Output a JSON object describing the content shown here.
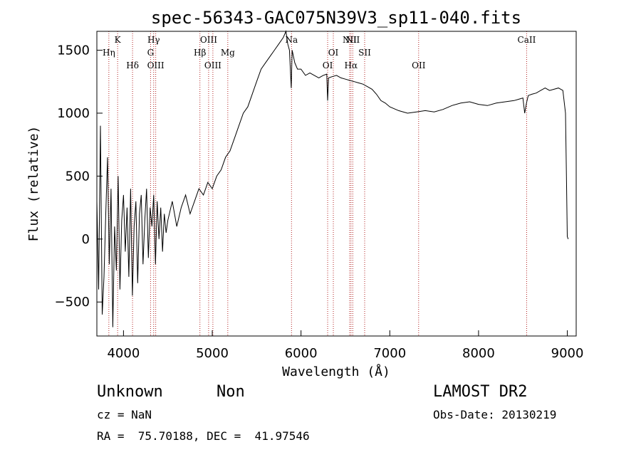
{
  "chart_data": {
    "type": "line",
    "title": "spec-56343-GAC075N39V3_sp11-040.fits",
    "xlabel": "Wavelength (Å)",
    "ylabel": "Flux (relative)",
    "xlim": [
      3700,
      9100
    ],
    "ylim": [
      -770,
      1650
    ],
    "xticks": [
      4000,
      5000,
      6000,
      7000,
      8000,
      9000
    ],
    "yticks": [
      -500,
      0,
      500,
      1000,
      1500
    ],
    "xtick_labels": [
      "4000",
      "5000",
      "6000",
      "7000",
      "8000",
      "9000"
    ],
    "ytick_labels": [
      "−500",
      "0",
      "500",
      "1000",
      "1500"
    ],
    "series": [
      {
        "x": [
          3700,
          3720,
          3740,
          3760,
          3780,
          3800,
          3820,
          3840,
          3860,
          3880,
          3900,
          3920,
          3940,
          3960,
          3980,
          4000,
          4020,
          4040,
          4060,
          4080,
          4100,
          4120,
          4140,
          4160,
          4180,
          4200,
          4220,
          4240,
          4260,
          4280,
          4300,
          4320,
          4340,
          4360,
          4380,
          4400,
          4420,
          4440,
          4460,
          4480,
          4500,
          4550,
          4600,
          4650,
          4700,
          4750,
          4800,
          4850,
          4900,
          4950,
          5000,
          5050,
          5100,
          5150,
          5200,
          5250,
          5300,
          5350,
          5400,
          5450,
          5500,
          5550,
          5600,
          5650,
          5700,
          5750,
          5800,
          5830,
          5850,
          5870,
          5890,
          5900,
          5930,
          5960,
          6000,
          6050,
          6100,
          6150,
          6200,
          6250,
          6290,
          6300,
          6310,
          6350,
          6400,
          6450,
          6500,
          6550,
          6600,
          6650,
          6700,
          6750,
          6800,
          6850,
          6900,
          6950,
          7000,
          7100,
          7200,
          7300,
          7400,
          7500,
          7600,
          7700,
          7800,
          7900,
          8000,
          8100,
          8200,
          8300,
          8400,
          8450,
          8500,
          8520,
          8540,
          8560,
          8600,
          8650,
          8700,
          8750,
          8800,
          8850,
          8900,
          8950,
          8980,
          8990,
          9000,
          9010
        ],
        "y": [
          300,
          -400,
          900,
          -600,
          -300,
          200,
          650,
          -200,
          400,
          -700,
          100,
          -250,
          500,
          -400,
          150,
          350,
          -100,
          250,
          -300,
          400,
          -450,
          100,
          300,
          -350,
          200,
          350,
          -200,
          150,
          400,
          -150,
          250,
          100,
          350,
          -200,
          300,
          0,
          250,
          -100,
          200,
          50,
          150,
          300,
          100,
          250,
          350,
          200,
          300,
          400,
          350,
          450,
          400,
          500,
          550,
          650,
          700,
          800,
          900,
          1000,
          1050,
          1150,
          1250,
          1350,
          1400,
          1450,
          1500,
          1550,
          1600,
          1650,
          1550,
          1500,
          1200,
          1500,
          1400,
          1350,
          1350,
          1300,
          1320,
          1300,
          1280,
          1300,
          1310,
          1100,
          1280,
          1290,
          1300,
          1280,
          1270,
          1260,
          1250,
          1240,
          1230,
          1210,
          1190,
          1150,
          1100,
          1080,
          1050,
          1020,
          1000,
          1010,
          1020,
          1010,
          1030,
          1060,
          1080,
          1090,
          1070,
          1060,
          1080,
          1090,
          1100,
          1110,
          1120,
          1000,
          1080,
          1140,
          1150,
          1160,
          1180,
          1200,
          1180,
          1190,
          1200,
          1180,
          1000,
          500,
          20,
          0
        ]
      }
    ],
    "lines": [
      {
        "label": "Hη",
        "x": 3835,
        "row": 1
      },
      {
        "label": "K",
        "x": 3934,
        "row": 0
      },
      {
        "label": "Hδ",
        "x": 4102,
        "row": 2
      },
      {
        "label": "Hγ",
        "x": 4340,
        "row": 0
      },
      {
        "label": "G",
        "x": 4305,
        "row": 1
      },
      {
        "label": "OIII",
        "x": 4363,
        "row": 2
      },
      {
        "label": "OIII",
        "x": 4959,
        "row": 0
      },
      {
        "label": "Hβ",
        "x": 4861,
        "row": 1
      },
      {
        "label": "OIII",
        "x": 5007,
        "row": 2
      },
      {
        "label": "Mg",
        "x": 5175,
        "row": 1
      },
      {
        "label": "Na",
        "x": 5893,
        "row": 0
      },
      {
        "label": "OI",
        "x": 6364,
        "row": 1
      },
      {
        "label": "OI",
        "x": 6300,
        "row": 2
      },
      {
        "label": "NII",
        "x": 6548,
        "row": 0
      },
      {
        "label": "NII",
        "x": 6583,
        "row": 0
      },
      {
        "label": "Hα",
        "x": 6563,
        "row": 2
      },
      {
        "label": "SII",
        "x": 6717,
        "row": 1
      },
      {
        "label": "OII",
        "x": 7325,
        "row": 2
      },
      {
        "label": "CaII",
        "x": 8542,
        "row": 0
      }
    ],
    "grid": false,
    "legend": "none"
  },
  "info": {
    "class_label": "Unknown",
    "subclass_label": "Non",
    "survey": "LAMOST DR2",
    "cz": "cz = NaN",
    "obs_date": "Obs-Date: 20130219",
    "radec": "RA =  75.70188, DEC =  41.97546"
  },
  "colors": {
    "line_marker": "#b22222",
    "spectrum": "#000000"
  }
}
